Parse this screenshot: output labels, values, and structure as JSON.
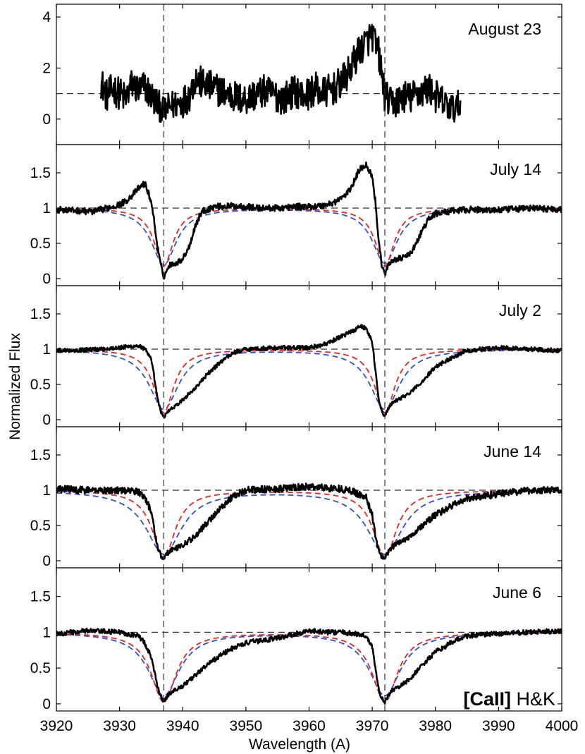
{
  "chart_data": {
    "type": "line",
    "xlabel": "Wavelength  (A)",
    "ylabel": "Normalized Flux",
    "xlim": [
      3920,
      4000
    ],
    "xticks": [
      3920,
      3930,
      3940,
      3950,
      3960,
      3970,
      3980,
      3990,
      4000
    ],
    "reference_lines": {
      "vertical_x": [
        3937,
        3972
      ],
      "horizontal_y": 1
    },
    "annotation": {
      "bold": "[CaII]",
      "normal": " H&K"
    },
    "colors": {
      "observed": "#000000",
      "model_red": "#e8231e",
      "model_blue": "#2c4fd8",
      "reference": "#333333"
    },
    "panels": [
      {
        "label": "August 23",
        "ylim": [
          -1,
          4.5
        ],
        "yticks": [
          0,
          2,
          4
        ],
        "observed": {
          "x": [
            3927,
            3928,
            3929,
            3930,
            3931,
            3932,
            3933,
            3934,
            3935,
            3936,
            3937,
            3938,
            3939,
            3940,
            3941,
            3942,
            3943,
            3944,
            3945,
            3946,
            3947,
            3948,
            3949,
            3950,
            3951,
            3952,
            3953,
            3954,
            3955,
            3956,
            3957,
            3958,
            3959,
            3960,
            3961,
            3962,
            3963,
            3964,
            3965,
            3966,
            3967,
            3968,
            3969,
            3970,
            3971,
            3972,
            3973,
            3974,
            3975,
            3976,
            3977,
            3978,
            3979,
            3980,
            3981,
            3982,
            3983,
            3984
          ],
          "y": [
            1.5,
            0.9,
            1.2,
            1.0,
            0.8,
            1.4,
            1.1,
            1.3,
            0.9,
            0.6,
            0.3,
            0.5,
            0.6,
            0.7,
            0.9,
            1.6,
            1.4,
            1.3,
            1.2,
            1.1,
            1.0,
            0.9,
            0.8,
            0.8,
            0.9,
            1.0,
            1.1,
            1.0,
            0.9,
            0.8,
            1.0,
            1.1,
            0.9,
            1.0,
            1.2,
            1.0,
            1.1,
            1.2,
            1.4,
            1.7,
            2.2,
            2.7,
            3.0,
            3.3,
            2.6,
            0.9,
            0.6,
            0.7,
            0.9,
            0.8,
            1.0,
            1.1,
            1.2,
            0.9,
            0.7,
            0.5,
            0.4,
            0.6
          ],
          "noise": 0.65
        }
      },
      {
        "label": "July 14",
        "ylim": [
          -0.1,
          1.9
        ],
        "yticks": [
          0,
          0.5,
          1,
          1.5
        ],
        "yticklabels": [
          "0",
          "0.5",
          "1",
          "1.5"
        ],
        "observed": {
          "x": [
            3920,
            3922,
            3924,
            3926,
            3928,
            3930,
            3931,
            3932,
            3933,
            3934,
            3935,
            3935.5,
            3936,
            3936.5,
            3937,
            3937.5,
            3938,
            3939,
            3940,
            3941,
            3942,
            3943,
            3945,
            3948,
            3950,
            3952,
            3955,
            3958,
            3960,
            3962,
            3964,
            3966,
            3967,
            3968,
            3969,
            3970,
            3970.5,
            3971,
            3971.5,
            3972,
            3972.5,
            3973,
            3974,
            3975,
            3976,
            3977,
            3978,
            3979,
            3980,
            3982,
            3985,
            3990,
            3995,
            4000
          ],
          "y": [
            0.98,
            0.97,
            0.96,
            0.95,
            1.0,
            1.05,
            1.1,
            1.18,
            1.28,
            1.35,
            1.1,
            0.8,
            0.45,
            0.2,
            0.02,
            0.12,
            0.2,
            0.22,
            0.28,
            0.45,
            0.75,
            0.95,
            1.02,
            1.03,
            1.02,
            1.0,
            1.0,
            1.02,
            1.02,
            1.03,
            1.08,
            1.2,
            1.35,
            1.55,
            1.62,
            1.45,
            1.1,
            0.55,
            0.2,
            0.06,
            0.18,
            0.25,
            0.28,
            0.3,
            0.35,
            0.5,
            0.7,
            0.85,
            0.92,
            0.95,
            0.98,
            0.97,
            1.0,
            0.98
          ],
          "noise": 0.045
        },
        "model_red": {
          "depth_h": 0.82,
          "width_h": 1.8,
          "depth_k": 0.82,
          "width_k": 1.8
        },
        "model_blue": {
          "depth_h": 0.8,
          "width_h": 2.4,
          "depth_k": 0.78,
          "width_k": 2.4
        }
      },
      {
        "label": "July 2",
        "ylim": [
          -0.1,
          1.9
        ],
        "yticks": [
          0,
          0.5,
          1,
          1.5
        ],
        "yticklabels": [
          "0",
          "0.5",
          "1",
          "1.5"
        ],
        "observed": {
          "x": [
            3920,
            3925,
            3930,
            3933,
            3934,
            3935,
            3935.5,
            3936,
            3936.5,
            3937,
            3937.5,
            3938,
            3939,
            3940,
            3942,
            3944,
            3946,
            3948,
            3950,
            3955,
            3960,
            3963,
            3965,
            3967,
            3968,
            3969,
            3970,
            3970.5,
            3971,
            3971.5,
            3972,
            3972.5,
            3973,
            3974,
            3976,
            3978,
            3980,
            3983,
            3985,
            3990,
            3995,
            4000
          ],
          "y": [
            0.98,
            0.99,
            1.02,
            1.05,
            1.0,
            0.85,
            0.6,
            0.3,
            0.12,
            0.03,
            0.1,
            0.15,
            0.2,
            0.28,
            0.45,
            0.65,
            0.82,
            0.95,
            1.0,
            1.02,
            1.02,
            1.08,
            1.18,
            1.26,
            1.33,
            1.3,
            1.1,
            0.7,
            0.3,
            0.12,
            0.05,
            0.15,
            0.22,
            0.28,
            0.38,
            0.55,
            0.75,
            0.9,
            0.98,
            1.02,
            1.0,
            0.98
          ],
          "noise": 0.03
        },
        "model_red": {
          "depth_h": 0.9,
          "width_h": 1.9,
          "depth_k": 0.9,
          "width_k": 1.9
        },
        "model_blue": {
          "depth_h": 0.85,
          "width_h": 2.8,
          "depth_k": 0.85,
          "width_k": 2.8
        }
      },
      {
        "label": "June 14",
        "ylim": [
          -0.1,
          1.9
        ],
        "yticks": [
          0,
          0.5,
          1,
          1.5
        ],
        "yticklabels": [
          "0",
          "0.5",
          "1",
          "1.5"
        ],
        "observed": {
          "x": [
            3920,
            3925,
            3930,
            3933,
            3934,
            3935,
            3935.5,
            3936,
            3936.5,
            3937,
            3937.5,
            3938,
            3939,
            3940,
            3942,
            3944,
            3946,
            3948,
            3950,
            3955,
            3960,
            3965,
            3967,
            3969,
            3970,
            3970.5,
            3971,
            3971.5,
            3972,
            3972.5,
            3973,
            3974,
            3976,
            3978,
            3980,
            3983,
            3985,
            3990,
            3995,
            4000
          ],
          "y": [
            1.02,
            1.0,
            1.0,
            0.98,
            0.9,
            0.7,
            0.45,
            0.2,
            0.08,
            0.02,
            0.1,
            0.15,
            0.18,
            0.22,
            0.35,
            0.55,
            0.75,
            0.92,
            1.0,
            1.02,
            1.05,
            1.02,
            0.98,
            0.9,
            0.65,
            0.35,
            0.15,
            0.05,
            0.02,
            0.12,
            0.18,
            0.25,
            0.35,
            0.5,
            0.65,
            0.8,
            0.88,
            0.95,
            1.0,
            1.0
          ],
          "noise": 0.05
        },
        "model_red": {
          "depth_h": 0.95,
          "width_h": 2.2,
          "depth_k": 0.95,
          "width_k": 2.2
        },
        "model_blue": {
          "depth_h": 0.9,
          "width_h": 3.4,
          "depth_k": 0.9,
          "width_k": 3.4
        }
      },
      {
        "label": "June 6",
        "ylim": [
          -0.1,
          1.9
        ],
        "yticks": [
          0,
          0.5,
          1,
          1.5
        ],
        "yticklabels": [
          "0",
          "0.5",
          "1",
          "1.5"
        ],
        "observed": {
          "x": [
            3920,
            3925,
            3930,
            3933,
            3934,
            3935,
            3935.5,
            3936,
            3936.5,
            3937,
            3937.5,
            3938,
            3939,
            3940,
            3942,
            3944,
            3946,
            3948,
            3950,
            3955,
            3958,
            3960,
            3963,
            3965,
            3967,
            3969,
            3970,
            3970.5,
            3971,
            3971.5,
            3972,
            3972.5,
            3973,
            3974,
            3976,
            3978,
            3980,
            3983,
            3985,
            3990,
            3995,
            4000
          ],
          "y": [
            0.98,
            1.02,
            1.0,
            0.95,
            0.85,
            0.65,
            0.45,
            0.25,
            0.1,
            0.03,
            0.1,
            0.15,
            0.2,
            0.25,
            0.4,
            0.55,
            0.68,
            0.78,
            0.85,
            0.92,
            0.98,
            1.02,
            1.0,
            1.0,
            0.98,
            0.95,
            0.8,
            0.5,
            0.2,
            0.08,
            0.02,
            0.12,
            0.18,
            0.22,
            0.35,
            0.55,
            0.72,
            0.88,
            0.95,
            0.98,
            1.0,
            1.02
          ],
          "noise": 0.035
        },
        "model_red": {
          "depth_h": 0.97,
          "width_h": 2.4,
          "depth_k": 0.97,
          "width_k": 2.4
        },
        "model_blue": {
          "depth_h": 0.88,
          "width_h": 3.0,
          "depth_k": 0.88,
          "width_k": 3.0
        }
      }
    ]
  }
}
